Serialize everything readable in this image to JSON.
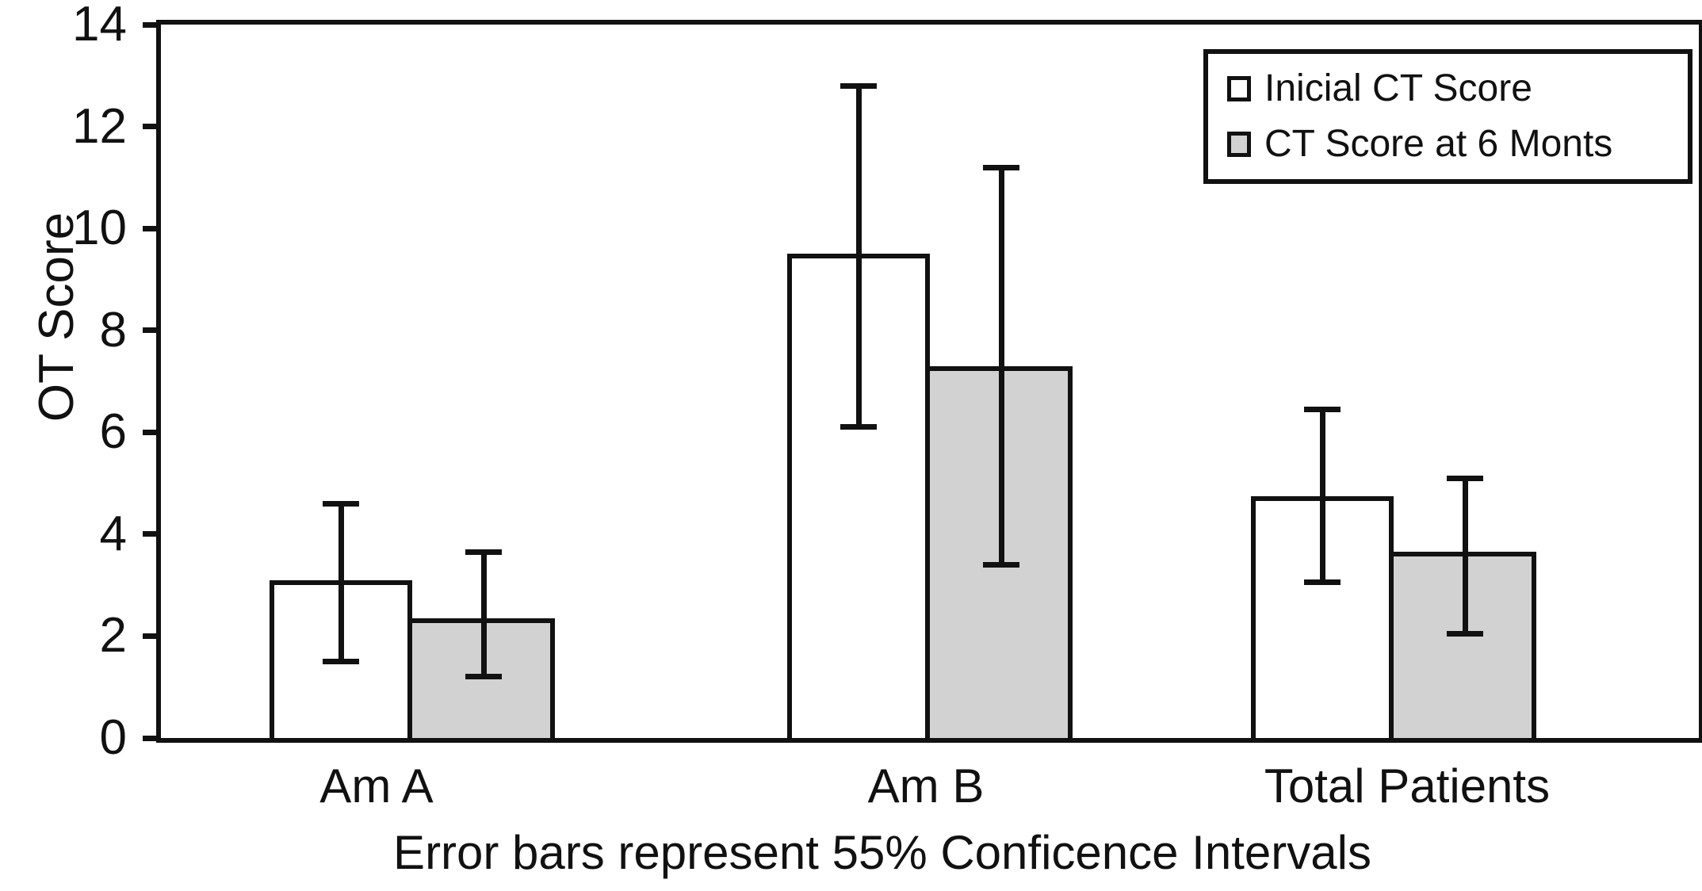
{
  "figure": {
    "ylabel": "OT Score",
    "caption": "Error bars represent 55% Conficence Intervals"
  },
  "chart_data": {
    "type": "bar",
    "title": "",
    "categories": [
      "Am A",
      "Am B",
      "Total Patients"
    ],
    "series": [
      {
        "name": "Inicial CT Score",
        "fill": "#ffffff",
        "values": [
          3.1,
          9.5,
          4.75
        ],
        "ci_low": [
          1.5,
          6.1,
          3.05
        ],
        "ci_high": [
          4.6,
          12.8,
          6.45
        ]
      },
      {
        "name": "CT Score at 6 Monts",
        "fill": "#d2d2d2",
        "values": [
          2.35,
          7.3,
          3.65
        ],
        "ci_low": [
          1.2,
          3.4,
          2.05
        ],
        "ci_high": [
          3.65,
          11.2,
          5.1
        ]
      }
    ],
    "ylabel": "OT Score",
    "xlabel": "Error bars represent 55% Conficence Intervals",
    "ylim": [
      0,
      14
    ],
    "yticks": [
      0,
      2,
      4,
      6,
      8,
      10,
      12,
      14
    ],
    "grid": false,
    "legend_position": "top-right",
    "error_bars": true,
    "line_color": "#111111",
    "bar_outline_color": "#111111"
  }
}
